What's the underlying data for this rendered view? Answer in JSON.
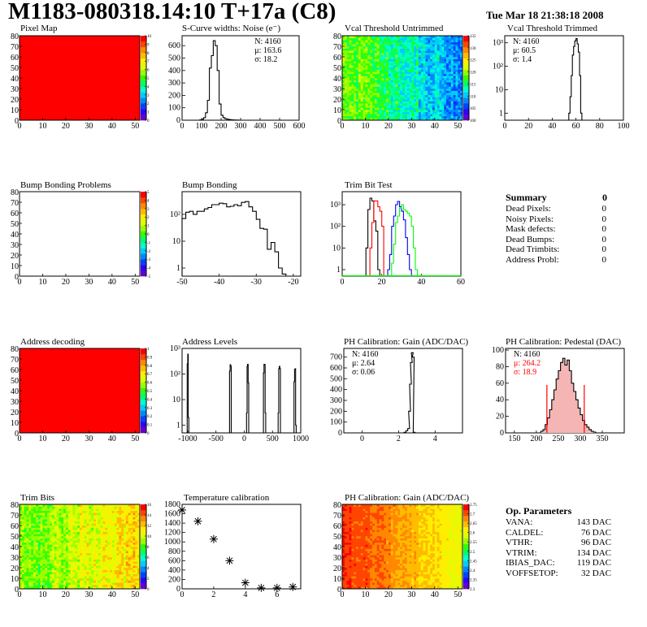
{
  "header": {
    "title": "M1183-080318.14:10 T+17a (C8)",
    "date": "Tue Mar 18 21:38:18 2008"
  },
  "colors": {
    "red": "#ff0000",
    "blue": "#0000ff",
    "green": "#00ff00",
    "black": "#000000",
    "palette": [
      "#6600cc",
      "#3300ff",
      "#0044ff",
      "#0088ff",
      "#00ccff",
      "#00ffcc",
      "#00ff66",
      "#33ff00",
      "#99ff00",
      "#ddff00",
      "#ffee00",
      "#ffbb00",
      "#ff8800",
      "#ff4400",
      "#ff0000"
    ]
  },
  "summary": {
    "title": "Summary",
    "total": "0",
    "rows": [
      {
        "label": "Dead Pixels:",
        "value": "0"
      },
      {
        "label": "Noisy Pixels:",
        "value": "0"
      },
      {
        "label": "Mask defects:",
        "value": "0"
      },
      {
        "label": "Dead Bumps:",
        "value": "0"
      },
      {
        "label": "Dead Trimbits:",
        "value": "0"
      },
      {
        "label": "Address Probl:",
        "value": "0"
      }
    ]
  },
  "op_params": {
    "title": "Op. Parameters",
    "rows": [
      {
        "label": "VANA:",
        "value": "143 DAC"
      },
      {
        "label": "CALDEL:",
        "value": "76 DAC"
      },
      {
        "label": "VTHR:",
        "value": "96 DAC"
      },
      {
        "label": "VTRIM:",
        "value": "134 DAC"
      },
      {
        "label": "IBIAS_DAC:",
        "value": "119 DAC"
      },
      {
        "label": "VOFFSETOP:",
        "value": "32 DAC"
      }
    ]
  },
  "chart_data": [
    {
      "id": "pixel-map",
      "type": "heatmap",
      "title": "Pixel Map",
      "xlim": [
        0,
        52
      ],
      "ylim": [
        0,
        80
      ],
      "xticks": [
        "0",
        "10",
        "20",
        "30",
        "40",
        "50"
      ],
      "yticks": [
        "0",
        "10",
        "20",
        "30",
        "40",
        "50",
        "60",
        "70",
        "80"
      ],
      "colorbar_ticks": [
        "0",
        "1",
        "2",
        "3",
        "4",
        "5",
        "6",
        "7",
        "8",
        "9",
        "10"
      ],
      "pattern": "uniform",
      "value": 10,
      "zrange": [
        0,
        10
      ]
    },
    {
      "id": "scurve-noise",
      "type": "bar",
      "title": "S-Curve widths: Noise (e⁻)",
      "xlim": [
        0,
        600
      ],
      "ylim": [
        0,
        680
      ],
      "yscale": "linear",
      "xticks": [
        "0",
        "100",
        "200",
        "300",
        "400",
        "500",
        "600"
      ],
      "yticks": [
        "0",
        "100",
        "200",
        "300",
        "400",
        "500",
        "600"
      ],
      "stats": [
        "N: 4160",
        "μ: 163.6",
        "σ: 18.2"
      ],
      "series": [
        {
          "name": "noise",
          "color": "#000000",
          "x": [
            90,
            100,
            110,
            120,
            130,
            140,
            150,
            160,
            170,
            180,
            190,
            200,
            210,
            220,
            230,
            240,
            250,
            260,
            270,
            280
          ],
          "values": [
            2,
            8,
            20,
            60,
            160,
            420,
            520,
            640,
            600,
            400,
            130,
            40,
            20,
            12,
            8,
            5,
            3,
            2,
            1,
            1
          ]
        }
      ]
    },
    {
      "id": "vcal-untrimmed",
      "type": "heatmap",
      "title": "Vcal Threshold Untrimmed",
      "xlim": [
        0,
        52
      ],
      "ylim": [
        0,
        80
      ],
      "xticks": [
        "0",
        "10",
        "20",
        "30",
        "40",
        "50"
      ],
      "yticks": [
        "0",
        "10",
        "20",
        "30",
        "40",
        "50",
        "60",
        "70",
        "80"
      ],
      "colorbar_ticks": [
        "100",
        "105",
        "110",
        "115",
        "120",
        "125",
        "130",
        "135"
      ],
      "pattern": "gradient-x",
      "zrange": [
        100,
        135
      ],
      "zleft": 120,
      "zright": 108,
      "noise": 6
    },
    {
      "id": "vcal-trimmed",
      "type": "bar",
      "title": "Vcal Threshold Trimmed",
      "xlim": [
        0,
        100
      ],
      "ylim": [
        0.5,
        2000
      ],
      "yscale": "log",
      "xticks": [
        "0",
        "20",
        "40",
        "60",
        "80",
        "100"
      ],
      "yticks": [
        "1",
        "10",
        "10²",
        "10³"
      ],
      "stats": [
        "N: 4160",
        "μ: 60.5",
        "σ:  1.4"
      ],
      "series": [
        {
          "name": "trimmed",
          "color": "#000000",
          "x": [
            54,
            55,
            56,
            57,
            58,
            59,
            60,
            61,
            62,
            63,
            64
          ],
          "values": [
            1,
            5,
            40,
            300,
            700,
            1200,
            1500,
            900,
            400,
            40,
            1
          ]
        }
      ]
    },
    {
      "id": "bump-bonding-problems",
      "type": "heatmap",
      "title": "Bump Bonding Problems",
      "xlim": [
        0,
        52
      ],
      "ylim": [
        0,
        80
      ],
      "xticks": [
        "0",
        "10",
        "20",
        "30",
        "40",
        "50"
      ],
      "yticks": [
        "0",
        "10",
        "20",
        "30",
        "40",
        "50",
        "60",
        "70",
        "80"
      ],
      "colorbar_ticks": [
        "-5",
        "-4",
        "-3",
        "-2",
        "-1",
        "0",
        "1",
        "2",
        "3",
        "4",
        "5"
      ],
      "pattern": "empty",
      "zrange": [
        -5,
        5
      ]
    },
    {
      "id": "bump-bonding",
      "type": "bar",
      "title": "Bump Bonding",
      "xlim": [
        -50,
        -18
      ],
      "ylim": [
        0.5,
        700
      ],
      "yscale": "log",
      "xticks": [
        "-50",
        "-40",
        "-30",
        "-20"
      ],
      "yticks": [
        "1",
        "10",
        "10²"
      ],
      "series": [
        {
          "name": "bump",
          "color": "#000000",
          "x": [
            -50,
            -49,
            -48,
            -47,
            -46,
            -45,
            -44,
            -43,
            -42,
            -41,
            -40,
            -39,
            -38,
            -37,
            -36,
            -35,
            -34,
            -33,
            -32,
            -31,
            -30,
            -29,
            -28,
            -27,
            -26,
            -25,
            -24,
            -23
          ],
          "values": [
            70,
            120,
            130,
            100,
            130,
            130,
            160,
            180,
            230,
            230,
            260,
            250,
            190,
            200,
            230,
            210,
            280,
            300,
            190,
            130,
            65,
            30,
            28,
            5,
            9,
            4,
            1,
            0.6
          ]
        }
      ]
    },
    {
      "id": "trim-bit-test",
      "type": "bar",
      "title": "Trim Bit Test",
      "xlim": [
        0,
        60
      ],
      "ylim": [
        0.5,
        4000
      ],
      "yscale": "log",
      "xticks": [
        "0",
        "20",
        "40",
        "60"
      ],
      "yticks": [
        "1",
        "10",
        "10²",
        "10³"
      ],
      "series": [
        {
          "name": "trim-0",
          "color": "#000000",
          "x": [
            12,
            13,
            14,
            15,
            16,
            17,
            18
          ],
          "values": [
            10,
            600,
            2000,
            1500,
            180,
            60,
            1
          ]
        },
        {
          "name": "trim-1",
          "color": "#ff0000",
          "x": [
            14,
            15,
            16,
            17,
            18,
            19,
            20
          ],
          "values": [
            10,
            150,
            1500,
            1500,
            800,
            500,
            100
          ]
        },
        {
          "name": "trim-2",
          "color": "#0000ff",
          "x": [
            23,
            24,
            25,
            26,
            27,
            28,
            29,
            30,
            31,
            32,
            33,
            34
          ],
          "values": [
            1,
            5,
            100,
            300,
            1000,
            1400,
            800,
            500,
            200,
            30,
            5,
            1
          ]
        },
        {
          "name": "trim-3",
          "color": "#00ff00",
          "x": [
            25,
            26,
            27,
            28,
            29,
            30,
            31,
            32,
            33,
            34,
            35,
            36,
            37
          ],
          "values": [
            2,
            15,
            150,
            300,
            700,
            1000,
            600,
            500,
            400,
            300,
            100,
            10,
            1
          ]
        }
      ]
    },
    {
      "id": "address-decoding",
      "type": "heatmap",
      "title": "Address decoding",
      "xlim": [
        0,
        52
      ],
      "ylim": [
        0,
        80
      ],
      "xticks": [
        "0",
        "10",
        "20",
        "30",
        "40",
        "50"
      ],
      "yticks": [
        "0",
        "10",
        "20",
        "30",
        "40",
        "50",
        "60",
        "70",
        "80"
      ],
      "colorbar_ticks": [
        "0",
        "0.1",
        "0.2",
        "0.3",
        "0.4",
        "0.5",
        "0.6",
        "0.7",
        "0.8",
        "0.9",
        "1"
      ],
      "pattern": "uniform",
      "value": 1,
      "zrange": [
        0,
        1
      ]
    },
    {
      "id": "address-levels",
      "type": "bar",
      "title": "Address Levels",
      "xlim": [
        -1100,
        1000
      ],
      "ylim": [
        0.5,
        1000
      ],
      "yscale": "log",
      "xticks": [
        "-1000",
        "-500",
        "0",
        "500",
        "1000"
      ],
      "yticks": [
        "1",
        "10",
        "10²",
        "10³"
      ],
      "series": [
        {
          "name": "levels",
          "color": "#000000",
          "peaks": [
            {
              "x": [
                -1010,
                -1000,
                -990
              ],
              "values": [
                250,
                600,
                2
              ]
            },
            {
              "x": [
                -260,
                -250,
                -240
              ],
              "values": [
                130,
                230,
                200
              ]
            },
            {
              "x": [
                40,
                50,
                60,
                70
              ],
              "values": [
                3,
                200,
                240,
                45
              ]
            },
            {
              "x": [
                340,
                350,
                360,
                370
              ],
              "values": [
                110,
                240,
                230,
                3
              ]
            },
            {
              "x": [
                600,
                610,
                620,
                630
              ],
              "values": [
                3,
                160,
                200,
                160
              ]
            },
            {
              "x": [
                880,
                890,
                900,
                910
              ],
              "values": [
                50,
                150,
                160,
                1
              ]
            }
          ]
        }
      ]
    },
    {
      "id": "ph-gain",
      "type": "bar",
      "title": "PH Calibration: Gain (ADC/DAC)",
      "xlim": [
        -1,
        5.5
      ],
      "ylim": [
        0,
        780
      ],
      "yscale": "linear",
      "xticks": [
        "0",
        "2",
        "4"
      ],
      "yticks": [
        "0",
        "100",
        "200",
        "300",
        "400",
        "500",
        "600",
        "700"
      ],
      "stats": [
        "N: 4160",
        "μ: 2.64",
        "σ: 0.06"
      ],
      "series": [
        {
          "name": "gain",
          "color": "#000000",
          "x": [
            2.3,
            2.4,
            2.5,
            2.55,
            2.6,
            2.65,
            2.7,
            2.75,
            2.8
          ],
          "values": [
            5,
            20,
            40,
            200,
            450,
            650,
            740,
            700,
            5
          ]
        }
      ]
    },
    {
      "id": "ph-pedestal",
      "type": "bar",
      "title": "PH Calibration: Pedestal (DAC)",
      "xlim": [
        130,
        400
      ],
      "ylim": [
        0,
        102
      ],
      "yscale": "linear",
      "xticks": [
        "150",
        "200",
        "250",
        "300",
        "350"
      ],
      "yticks": [
        "0",
        "20",
        "40",
        "60",
        "80",
        "100"
      ],
      "stats": [
        "N: 4160",
        "μ: 264.2",
        "σ: 18.9"
      ],
      "fit_range": [
        224,
        309
      ],
      "series": [
        {
          "name": "pedestal",
          "color": "#000000",
          "x": [
            210,
            215,
            220,
            225,
            230,
            235,
            240,
            245,
            250,
            255,
            260,
            265,
            270,
            275,
            280,
            285,
            290,
            295,
            300,
            305,
            310,
            315,
            320,
            325,
            330
          ],
          "values": [
            2,
            4,
            10,
            18,
            28,
            40,
            52,
            65,
            75,
            85,
            90,
            82,
            88,
            75,
            60,
            50,
            40,
            30,
            22,
            15,
            10,
            7,
            4,
            2,
            1
          ]
        }
      ]
    },
    {
      "id": "trim-bits",
      "type": "heatmap",
      "title": "Trim Bits",
      "xlim": [
        0,
        52
      ],
      "ylim": [
        0,
        80
      ],
      "xticks": [
        "0",
        "10",
        "20",
        "30",
        "40",
        "50"
      ],
      "yticks": [
        "0",
        "10",
        "20",
        "30",
        "40",
        "50",
        "60",
        "70",
        "80"
      ],
      "colorbar_ticks": [
        "0",
        "2",
        "4",
        "6",
        "8",
        "10",
        "12",
        "14",
        "16"
      ],
      "pattern": "gradient-x",
      "zrange": [
        0,
        16
      ],
      "zleft": 8.5,
      "zright": 11.5,
      "noise": 2.5
    },
    {
      "id": "temperature-calibration",
      "type": "scatter",
      "title": "Temperature calibration",
      "xlim": [
        0,
        7.5
      ],
      "ylim": [
        0,
        1800
      ],
      "xticks": [
        "0",
        "2",
        "4",
        "6"
      ],
      "yticks": [
        "0",
        "200",
        "400",
        "600",
        "800",
        "1000",
        "1200",
        "1400",
        "1600",
        "1800"
      ],
      "x": [
        0,
        1,
        2,
        3,
        4,
        5,
        6,
        7
      ],
      "values": [
        1680,
        1440,
        1060,
        600,
        130,
        20,
        20,
        40
      ]
    },
    {
      "id": "ph-gain-map",
      "type": "heatmap",
      "title": "PH Calibration: Gain (ADC/DAC)",
      "xlim": [
        0,
        52
      ],
      "ylim": [
        0,
        80
      ],
      "xticks": [
        "0",
        "10",
        "20",
        "30",
        "40",
        "50"
      ],
      "yticks": [
        "0",
        "10",
        "20",
        "30",
        "40",
        "50",
        "60",
        "70",
        "80"
      ],
      "colorbar_ticks": [
        "2.3",
        "2.35",
        "2.4",
        "2.45",
        "2.5",
        "2.55",
        "2.6",
        "2.65",
        "2.7",
        "2.75"
      ],
      "pattern": "gradient-x",
      "zrange": [
        2.28,
        2.77
      ],
      "zleft": 2.74,
      "zright": 2.6,
      "noise": 0.04
    }
  ]
}
